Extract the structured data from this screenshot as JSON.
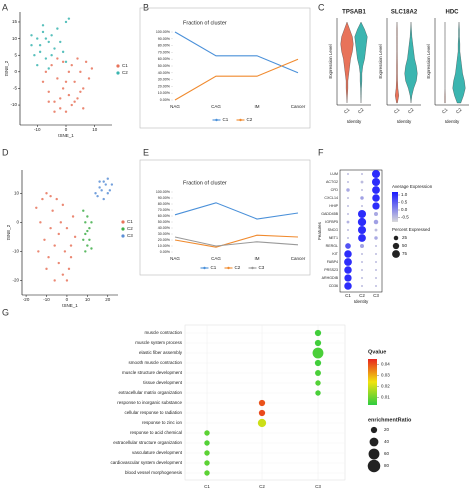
{
  "chart_data": [
    {
      "type": "scatter",
      "panel": "A",
      "xlabel": "tSNE_1",
      "ylabel": "tSNE_2",
      "xlim": [
        -16,
        16
      ],
      "ylim": [
        -16,
        18
      ],
      "xticks": [
        -10,
        0,
        10
      ],
      "yticks": [
        -10,
        -5,
        0,
        5,
        10,
        15
      ],
      "series": [
        {
          "name": "C1",
          "color": "#e8735a",
          "x": [
            -8,
            -6,
            -4,
            -2,
            0,
            2,
            4,
            6,
            8,
            -7,
            -5,
            -3,
            -1,
            1,
            3,
            5,
            7,
            9,
            -4,
            -2,
            0,
            2,
            4,
            6,
            -6,
            -3,
            1,
            5,
            3,
            -1
          ],
          "y": [
            -3,
            -6,
            -9,
            -11,
            -12,
            -10,
            -8,
            -5,
            -2,
            0,
            2,
            -2,
            -5,
            -7,
            -3,
            0,
            3,
            1,
            -12,
            -8,
            -3,
            2,
            4,
            -11,
            -9,
            4,
            0,
            -6,
            -9,
            3
          ]
        },
        {
          "name": "C2",
          "color": "#3bb5b0",
          "x": [
            -12,
            -10,
            -8,
            -6,
            -4,
            -11,
            -9,
            -7,
            -5,
            -3,
            -10,
            -8,
            -6,
            -2,
            -1,
            0,
            1,
            0,
            -12,
            -9,
            -5,
            -7
          ],
          "y": [
            8,
            10,
            12,
            9,
            7,
            5,
            6,
            4,
            11,
            13,
            2,
            14,
            1,
            9,
            6,
            15,
            16,
            3,
            11,
            8,
            5,
            10
          ]
        }
      ]
    },
    {
      "type": "line",
      "panel": "B",
      "title": "Fraction of cluster",
      "categories": [
        "NAG",
        "CAG",
        "IM",
        "Cancer"
      ],
      "ylim": [
        0,
        100
      ],
      "yticks": [
        {
          "value": 0,
          "label": "0.00%"
        },
        {
          "value": 10,
          "label": "10.00%"
        },
        {
          "value": 20,
          "label": "20.00%"
        },
        {
          "value": 30,
          "label": "30.00%"
        },
        {
          "value": 40,
          "label": "40.00%"
        },
        {
          "value": 50,
          "label": "50.00%"
        },
        {
          "value": 60,
          "label": "60.00%"
        },
        {
          "value": 70,
          "label": "70.00%"
        },
        {
          "value": 80,
          "label": "80.00%"
        },
        {
          "value": 90,
          "label": "90.00%"
        },
        {
          "value": 100,
          "label": "100.00%"
        }
      ],
      "series": [
        {
          "name": "C1",
          "color": "#4a90d9",
          "values": [
            100,
            65,
            65,
            40
          ]
        },
        {
          "name": "C2",
          "color": "#f08a2e",
          "values": [
            0,
            35,
            35,
            60
          ]
        }
      ]
    },
    {
      "type": "violin",
      "panel": "C",
      "ylabel": "Expression Level",
      "xlabel": "Identity",
      "categories": [
        "C1",
        "C2"
      ],
      "colors": [
        "#e8735a",
        "#3bb5b0"
      ],
      "panels": [
        {
          "title": "TPSAB1"
        },
        {
          "title": "SLC18A2"
        },
        {
          "title": "HDC"
        }
      ]
    },
    {
      "type": "scatter",
      "panel": "D",
      "xlabel": "tSNE_1",
      "ylabel": "tSNE_2",
      "xlim": [
        -22,
        25
      ],
      "ylim": [
        -25,
        18
      ],
      "xticks": [
        -20,
        -10,
        0,
        10,
        20
      ],
      "yticks": [
        -20,
        -10,
        0,
        10
      ],
      "series": [
        {
          "name": "C1",
          "color": "#e8735a",
          "x": [
            -15,
            -12,
            -10,
            -8,
            -6,
            -4,
            -2,
            0,
            2,
            4,
            -13,
            -11,
            -9,
            -7,
            -5,
            -3,
            -1,
            1,
            3,
            -14,
            -10,
            -6,
            -2,
            2,
            -8,
            -4,
            0
          ],
          "y": [
            5,
            8,
            10,
            -2,
            -8,
            -14,
            -18,
            -20,
            -12,
            -5,
            0,
            -6,
            -12,
            4,
            8,
            0,
            -10,
            -16,
            2,
            -10,
            -16,
            -20,
            6,
            -8,
            9,
            -4,
            -2
          ]
        },
        {
          "name": "C2",
          "color": "#3fae49",
          "x": [
            8,
            9,
            10,
            11,
            12,
            9,
            10,
            11,
            8,
            12,
            10,
            9
          ],
          "y": [
            4,
            0,
            -3,
            -6,
            -9,
            -10,
            2,
            -2,
            -6,
            0,
            -8,
            -4
          ]
        },
        {
          "name": "C3",
          "color": "#5b8fd6",
          "x": [
            14,
            16,
            18,
            20,
            22,
            15,
            17,
            19,
            21,
            16,
            18,
            20
          ],
          "y": [
            10,
            12,
            14,
            15,
            13,
            9,
            11,
            13,
            11,
            14,
            8,
            10
          ]
        }
      ]
    },
    {
      "type": "line",
      "panel": "E",
      "title": "Fraction of cluster",
      "categories": [
        "NAG",
        "CAG",
        "IM",
        "Cancer"
      ],
      "ylim": [
        0,
        100
      ],
      "yticks": [
        {
          "value": 0,
          "label": "0.00%"
        },
        {
          "value": 10,
          "label": "10.00%"
        },
        {
          "value": 20,
          "label": "20.00%"
        },
        {
          "value": 30,
          "label": "30.00%"
        },
        {
          "value": 40,
          "label": "40.00%"
        },
        {
          "value": 50,
          "label": "50.00%"
        },
        {
          "value": 60,
          "label": "60.00%"
        },
        {
          "value": 70,
          "label": "70.00%"
        },
        {
          "value": 80,
          "label": "80.00%"
        },
        {
          "value": 90,
          "label": "90.00%"
        },
        {
          "value": 100,
          "label": "100.00%"
        }
      ],
      "series": [
        {
          "name": "C1",
          "color": "#4a90d9",
          "values": [
            62,
            82,
            55,
            65
          ]
        },
        {
          "name": "C2",
          "color": "#f08a2e",
          "values": [
            20,
            8,
            28,
            25
          ]
        },
        {
          "name": "C3",
          "color": "#999999",
          "values": [
            25,
            10,
            17,
            12
          ]
        }
      ]
    },
    {
      "type": "dot",
      "panel": "F",
      "xlabel": "Identity",
      "ylabel": "Features",
      "categories": [
        "C1",
        "C2",
        "C3"
      ],
      "features": [
        "LUM",
        "ACTG2",
        "CFD",
        "CXCL14",
        "HHIP",
        "GADD45B",
        "IGFBP5",
        "SNCG",
        "NET1",
        "RERGL",
        "KIT",
        "FABP4",
        "PRSS23",
        "ARHGDIB",
        "CD36"
      ],
      "color_title": "Average Expression",
      "size_title": "Percent Expressed",
      "color_low": "#d9d9d9",
      "color_high": "#1a1aff",
      "clim": [
        -0.8,
        1.2
      ],
      "color_ticks": [
        {
          "value": 1,
          "label": "1.0"
        },
        {
          "value": 0.5,
          "label": "0.5"
        },
        {
          "value": 0,
          "label": "0.0"
        },
        {
          "value": -0.5,
          "label": "-0.5"
        }
      ],
      "size_ticks": [
        25,
        50,
        75
      ],
      "series": [
        {
          "name": "C1",
          "expression": [
            -0.5,
            -0.5,
            -0.3,
            -0.5,
            -0.5,
            -0.5,
            -0.4,
            -0.5,
            -0.5,
            0.6,
            1,
            1,
            1,
            1,
            1
          ],
          "percent": [
            5,
            5,
            15,
            5,
            5,
            5,
            10,
            5,
            5,
            40,
            70,
            75,
            70,
            65,
            70
          ]
        },
        {
          "name": "C2",
          "expression": [
            -0.5,
            -0.5,
            -0.5,
            -0.2,
            -0.5,
            1,
            1,
            1,
            1,
            -0.2,
            -0.5,
            -0.5,
            -0.5,
            -0.5,
            -0.5
          ],
          "percent": [
            5,
            10,
            5,
            15,
            5,
            80,
            85,
            80,
            75,
            20,
            5,
            5,
            5,
            5,
            5
          ]
        },
        {
          "name": "C3",
          "expression": [
            1,
            1,
            1,
            1,
            1,
            -0.3,
            -0.2,
            -0.5,
            -0.3,
            -0.5,
            -0.5,
            -0.5,
            -0.5,
            -0.5,
            -0.5
          ],
          "percent": [
            80,
            80,
            75,
            70,
            65,
            20,
            25,
            10,
            15,
            5,
            5,
            5,
            5,
            5,
            5
          ]
        }
      ]
    },
    {
      "type": "bubble",
      "panel": "G",
      "categories": [
        "C1",
        "C2",
        "C3"
      ],
      "terms": [
        "muscle contraction",
        "muscle system process",
        "elastic fiber assembly",
        "smooth muscle contraction",
        "muscle structure development",
        "tissue development",
        "extracellular matrix organization",
        "response to inorganic substance",
        "cellular response to radiation",
        "response to zinc ion",
        "response to acid chemical",
        "extracellular structure organization",
        "vasculature development",
        "cardiovascular system development",
        "blood vessel morphogenesis"
      ],
      "clusters": [
        "C3",
        "C3",
        "C3",
        "C3",
        "C3",
        "C3",
        "C3",
        "C2",
        "C2",
        "C2",
        "C1",
        "C1",
        "C1",
        "C1",
        "C1"
      ],
      "qvalue": [
        0.005,
        0.005,
        0.006,
        0.005,
        0.006,
        0.007,
        0.006,
        0.04,
        0.041,
        0.02,
        0.008,
        0.007,
        0.008,
        0.008,
        0.008
      ],
      "ratio": [
        20,
        20,
        60,
        20,
        18,
        15,
        15,
        20,
        20,
        35,
        15,
        15,
        15,
        15,
        15
      ],
      "color_title": "Qvalue",
      "colors": [
        "#2ecc40",
        "#f1e40f",
        "#e8251f"
      ],
      "qlim": [
        0.003,
        0.045
      ],
      "qticks": [
        0.01,
        0.02,
        0.03,
        0.04
      ],
      "size_title": "enrichmentRatio",
      "size_ticks": [
        20,
        40,
        60,
        80
      ]
    }
  ]
}
